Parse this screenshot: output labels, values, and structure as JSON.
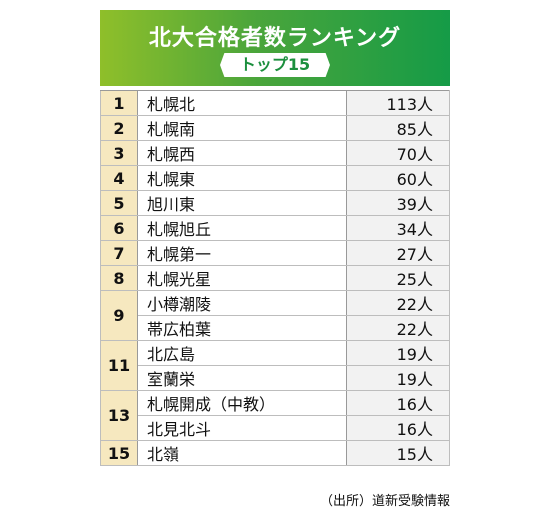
{
  "header": {
    "title": "北大合格者数ランキング",
    "subtitle": "トップ15"
  },
  "rows": [
    {
      "rank": "1",
      "school": "札幌北",
      "count": "113人"
    },
    {
      "rank": "2",
      "school": "札幌南",
      "count": "85人"
    },
    {
      "rank": "3",
      "school": "札幌西",
      "count": "70人"
    },
    {
      "rank": "4",
      "school": "札幌東",
      "count": "60人"
    },
    {
      "rank": "5",
      "school": "旭川東",
      "count": "39人"
    },
    {
      "rank": "6",
      "school": "札幌旭丘",
      "count": "34人"
    },
    {
      "rank": "7",
      "school": "札幌第一",
      "count": "27人"
    },
    {
      "rank": "8",
      "school": "札幌光星",
      "count": "25人"
    },
    {
      "rank": "9",
      "school": "小樽潮陵",
      "count": "22人"
    },
    {
      "rank": "",
      "school": "帯広柏葉",
      "count": "22人"
    },
    {
      "rank": "11",
      "school": "北広島",
      "count": "19人"
    },
    {
      "rank": "",
      "school": "室蘭栄",
      "count": "19人"
    },
    {
      "rank": "13",
      "school": "札幌開成（中教）",
      "count": "16人"
    },
    {
      "rank": "",
      "school": "北見北斗",
      "count": "16人"
    },
    {
      "rank": "15",
      "school": "北嶺",
      "count": "15人"
    }
  ],
  "source": "（出所）道新受験情報"
}
